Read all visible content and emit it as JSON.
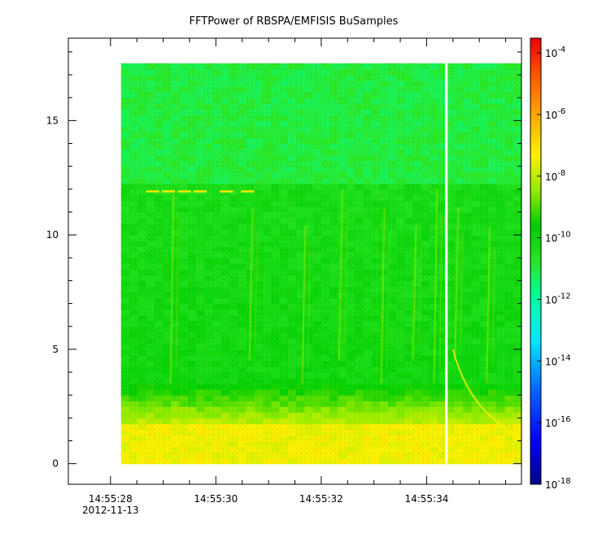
{
  "chart_data": {
    "type": "heatmap",
    "title": "FFTPower of RBSPA/EMFISIS  BuSamples",
    "xlabel": "",
    "ylabel": "",
    "x_ticks": [
      "14:55:28",
      "14:55:30",
      "14:55:32",
      "14:55:34"
    ],
    "x_tick_times_s": [
      28,
      30,
      32,
      34
    ],
    "x_date_label": "2012-11-13",
    "xlim_s": [
      27.2,
      35.8
    ],
    "data_x_range_s": [
      28.2,
      35.8
    ],
    "data_gap_s": [
      34.35,
      34.4
    ],
    "y_ticks": [
      0,
      5,
      10,
      15
    ],
    "ylim": [
      -0.9,
      18.6
    ],
    "data_y_range": [
      0,
      17.5
    ],
    "y_transition": 12.2,
    "colorbar": {
      "scale": "log",
      "range": [
        1e-18,
        0.0003
      ],
      "tick_values": [
        -18,
        -16,
        -14,
        -12,
        -10,
        -8,
        -6,
        -4
      ],
      "tick_labels": [
        "10-18",
        "10-16",
        "10-14",
        "10-12",
        "10-10",
        "10-8",
        "10-6",
        "10-4"
      ],
      "tick_mantissa": "10",
      "tick_exponents": [
        "-18",
        "-16",
        "-14",
        "-12",
        "-10",
        "-8",
        "-6",
        "-4"
      ]
    },
    "features": {
      "upper_band_log_power": -11,
      "lower_band_log_power": -10,
      "low_freq_log_power": -8,
      "spikes_12hz_at_s": [
        28.8,
        29.1,
        29.4,
        29.7,
        30.2,
        30.6
      ],
      "vertical_streaks_at_s": [
        29.2,
        30.7,
        31.7,
        32.4,
        33.2,
        33.8,
        34.2,
        34.6,
        35.2
      ]
    },
    "grid": false
  }
}
